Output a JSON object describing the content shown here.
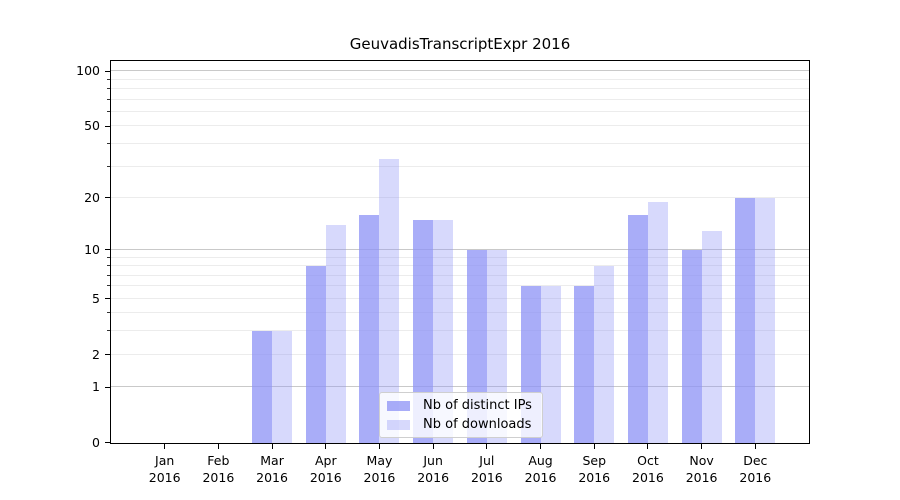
{
  "chart_data": {
    "type": "bar",
    "title": "GeuvadisTranscriptExpr 2016",
    "categories": [
      "Jan",
      "Feb",
      "Mar",
      "Apr",
      "May",
      "Jun",
      "Jul",
      "Aug",
      "Sep",
      "Oct",
      "Nov",
      "Dec"
    ],
    "x_tick_year": "2016",
    "series": [
      {
        "name": "Nb of distinct IPs",
        "color": "rgba(140,146,245,0.75)",
        "values": [
          0,
          0,
          3,
          8,
          16,
          15,
          10,
          6,
          6,
          16,
          10,
          20
        ]
      },
      {
        "name": "Nb of downloads",
        "color": "rgba(140,146,245,0.35)",
        "values": [
          0,
          0,
          3,
          14,
          33,
          15,
          10,
          6,
          8,
          19,
          13,
          20
        ]
      }
    ],
    "y_scale": "log1p",
    "ylim": [
      0,
      114
    ],
    "y_labeled_ticks": [
      0,
      1,
      2,
      5,
      10,
      20,
      50,
      100
    ],
    "y_major_gridlines": [
      1,
      10,
      100
    ],
    "y_minor_gridlines": [
      2,
      3,
      4,
      5,
      6,
      7,
      8,
      9,
      20,
      30,
      40,
      50,
      60,
      70,
      80,
      90
    ],
    "grid": true,
    "legend_position": "lower center"
  }
}
